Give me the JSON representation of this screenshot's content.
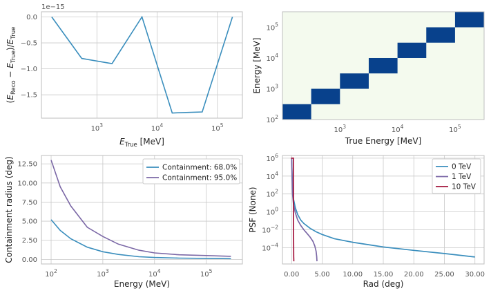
{
  "colors": {
    "blue": "#3a8ebd",
    "purple": "#7b68a6",
    "crimson": "#a3143c",
    "heat_high": "#08418c",
    "heat_low": "#f4faee",
    "grid": "#c8c8c8"
  },
  "chart_data": [
    {
      "id": "reco_bias",
      "type": "line",
      "xscale": "log",
      "xlim": [
        120,
        260000
      ],
      "ylim": [
        -1.95e-15,
        1e-16
      ],
      "offset_text": "1e−15",
      "xticks": [
        {
          "value": 1000,
          "label": "10",
          "sup": "3"
        },
        {
          "value": 10000,
          "label": "10",
          "sup": "4"
        },
        {
          "value": 100000,
          "label": "10",
          "sup": "5"
        }
      ],
      "yticks": [
        {
          "value": 0,
          "label": "0.0"
        },
        {
          "value": -5e-16,
          "label": "−0.5"
        },
        {
          "value": -1e-15,
          "label": "−1.0"
        },
        {
          "value": -1.5e-15,
          "label": "−1.5"
        }
      ],
      "xlabel": {
        "pre": "E",
        "sub": "True",
        "post": " [MeV]"
      },
      "ylabel": "(E_Reco − E_True)/E_True",
      "series": [
        {
          "x": [
            178,
            560,
            1780,
            5600,
            17800,
            56000,
            178000
          ],
          "y": [
            0,
            -8e-16,
            -9e-16,
            0,
            -1.85e-15,
            -1.83e-15,
            0
          ],
          "color": "#3a8ebd"
        }
      ]
    },
    {
      "id": "migration",
      "type": "heatmap",
      "xscale": "log",
      "yscale": "log",
      "xlim": [
        100,
        320000
      ],
      "ylim": [
        100,
        320000
      ],
      "x_edges": [
        100,
        316,
        1000,
        3162,
        10000,
        31623,
        100000,
        316228
      ],
      "y_edges": [
        100,
        316,
        1000,
        3162,
        10000,
        31623,
        100000,
        316228
      ],
      "values": "diagonal",
      "xticks": [
        {
          "value": 1000,
          "label": "10",
          "sup": "3"
        },
        {
          "value": 10000,
          "label": "10",
          "sup": "4"
        },
        {
          "value": 100000,
          "label": "10",
          "sup": "5"
        }
      ],
      "yticks": [
        {
          "value": 100,
          "label": "10",
          "sup": "2"
        },
        {
          "value": 1000,
          "label": "10",
          "sup": "3"
        },
        {
          "value": 10000,
          "label": "10",
          "sup": "4"
        },
        {
          "value": 100000,
          "label": "10",
          "sup": "5"
        }
      ],
      "xlabel": "True Energy [MeV]",
      "ylabel": "Energy [MeV]"
    },
    {
      "id": "containment",
      "type": "line",
      "xscale": "log",
      "xlim": [
        65,
        500000
      ],
      "ylim": [
        -0.6,
        13.6
      ],
      "grid": true,
      "legend_position": "top-right",
      "xticks": [
        {
          "value": 100,
          "label": "10",
          "sup": "2"
        },
        {
          "value": 1000,
          "label": "10",
          "sup": "3"
        },
        {
          "value": 10000,
          "label": "10",
          "sup": "4"
        },
        {
          "value": 100000,
          "label": "10",
          "sup": "5"
        }
      ],
      "yticks": [
        {
          "value": 0,
          "label": "0.00"
        },
        {
          "value": 2.5,
          "label": "2.50"
        },
        {
          "value": 5,
          "label": "5.00"
        },
        {
          "value": 7.5,
          "label": "7.50"
        },
        {
          "value": 10,
          "label": "10.00"
        },
        {
          "value": 12.5,
          "label": "12.50"
        }
      ],
      "xlabel": "Energy (MeV)",
      "ylabel": "Containment radius (deg)",
      "series": [
        {
          "name": "Containment: 68.0%",
          "color": "#3a8ebd",
          "x": [
            100,
            150,
            240,
            500,
            1000,
            2000,
            5000,
            10000,
            30000,
            100000,
            300000
          ],
          "y": [
            5.2,
            3.8,
            2.7,
            1.6,
            1.0,
            0.65,
            0.35,
            0.25,
            0.17,
            0.13,
            0.1
          ]
        },
        {
          "name": "Containment: 95.0%",
          "color": "#7b68a6",
          "x": [
            100,
            150,
            240,
            500,
            1000,
            2000,
            5000,
            10000,
            30000,
            100000,
            300000
          ],
          "y": [
            13.0,
            9.5,
            7.0,
            4.2,
            3.0,
            2.0,
            1.2,
            0.85,
            0.6,
            0.5,
            0.4
          ]
        }
      ]
    },
    {
      "id": "psf",
      "type": "line",
      "yscale": "log",
      "xlim": [
        -1.5,
        31.5
      ],
      "ylim": [
        1.5e-06,
        2000000.0
      ],
      "grid": true,
      "legend_position": "top-right",
      "xticks": [
        {
          "value": 0,
          "label": "0.00"
        },
        {
          "value": 5,
          "label": "5.00"
        },
        {
          "value": 10,
          "label": "10.00"
        },
        {
          "value": 15,
          "label": "15.00"
        },
        {
          "value": 20,
          "label": "20.00"
        },
        {
          "value": 25,
          "label": "25.00"
        },
        {
          "value": 30,
          "label": "30.00"
        }
      ],
      "yticks": [
        {
          "value": 0.0001,
          "label": "10",
          "sup": "−4"
        },
        {
          "value": 0.01,
          "label": "10",
          "sup": "−2"
        },
        {
          "value": 1,
          "label": "10",
          "sup": "0"
        },
        {
          "value": 100,
          "label": "10",
          "sup": "2"
        },
        {
          "value": 10000,
          "label": "10",
          "sup": "4"
        },
        {
          "value": 1000000,
          "label": "10",
          "sup": "6"
        }
      ],
      "xlabel": "Rad (deg)",
      "ylabel": "PSF (None)",
      "series": [
        {
          "name": "0 TeV",
          "color": "#3a8ebd",
          "x": [
            0,
            0.15,
            0.3,
            0.6,
            1.0,
            1.5,
            2.0,
            3.0,
            4.0,
            5.0,
            7.0,
            10.0,
            15.0,
            20.0,
            25.0,
            30.0
          ],
          "y": [
            1000000,
            500,
            30,
            3,
            0.5,
            0.12,
            0.05,
            0.015,
            0.006,
            0.003,
            0.001,
            0.0004,
            0.00012,
            5e-05,
            2.2e-05,
            9e-06
          ]
        },
        {
          "name": "1 TeV",
          "color": "#7b68a6",
          "x": [
            0,
            0.15,
            0.3,
            0.6,
            1.0,
            1.5,
            2.0,
            2.5,
            3.0,
            3.5,
            3.8,
            4.0,
            4.1,
            4.15
          ],
          "y": [
            1000000,
            100,
            8,
            0.8,
            0.12,
            0.03,
            0.01,
            0.004,
            0.0016,
            0.0005,
            0.00015,
            4e-05,
            1e-05,
            3e-06
          ]
        },
        {
          "name": "10 TeV",
          "color": "#a3143c",
          "x": [
            -0.1,
            0.3,
            0.32,
            0.34,
            0.36
          ],
          "y": [
            1000000,
            1000000,
            0.01,
            1e-05,
            3e-06
          ]
        }
      ]
    }
  ]
}
